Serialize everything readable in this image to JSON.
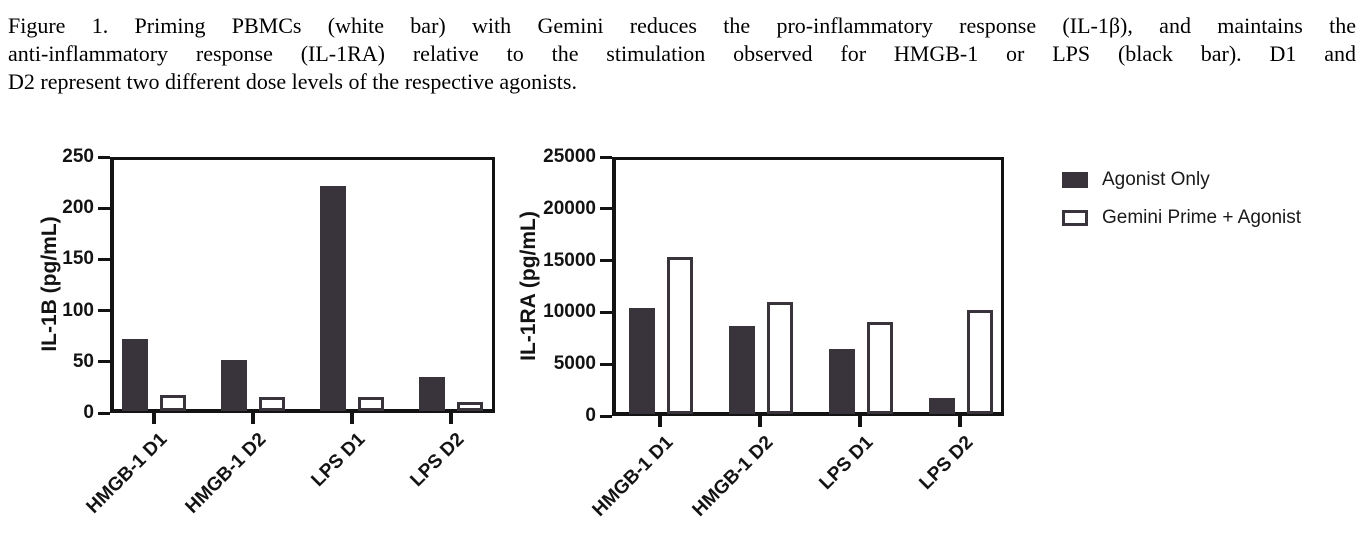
{
  "caption": {
    "lines": [
      "Figure 1. Priming PBMCs (white bar) with Gemini reduces the pro-inflammatory response (IL-1β), and maintains the",
      "anti-inflammatory response (IL-1RA) relative to the stimulation observed for HMGB-1 or LPS (black bar).  D1 and",
      "D2 represent two different dose levels of the respective agonists."
    ]
  },
  "legend": {
    "items": [
      {
        "label": "Agonist Only",
        "swatch": "filled-dark-rect"
      },
      {
        "label": "Gemini Prime + Agonist",
        "swatch": "outlined-white-rect"
      }
    ],
    "position": "right"
  },
  "colors": {
    "bar_dark": "#39343c",
    "bar_white": "#ffffff",
    "axis": "#131313",
    "background": "#ffffff"
  },
  "chart_data": [
    {
      "type": "bar",
      "title": "",
      "xlabel": "",
      "ylabel": "IL-1B (pg/mL)",
      "categories": [
        "HMGB-1 D1",
        "HMGB-1 D2",
        "LPS D1",
        "LPS D2"
      ],
      "series": [
        {
          "name": "Agonist Only",
          "values": [
            70,
            50,
            220,
            33
          ]
        },
        {
          "name": "Gemini Prime + Agonist",
          "values": [
            16,
            14,
            14,
            9
          ]
        }
      ],
      "ylim": [
        0,
        250
      ],
      "yticks": [
        0,
        50,
        100,
        150,
        200,
        250
      ],
      "grid": false,
      "x_tick_label_rotation_deg": 45
    },
    {
      "type": "bar",
      "title": "",
      "xlabel": "",
      "ylabel": "IL-1RA (pg/mL)",
      "categories": [
        "HMGB-1 D1",
        "HMGB-1 D2",
        "LPS D1",
        "LPS D2"
      ],
      "series": [
        {
          "name": "Agonist Only",
          "values": [
            10200,
            8500,
            6300,
            1500
          ]
        },
        {
          "name": "Gemini Prime + Agonist",
          "values": [
            15200,
            10800,
            8900,
            10000
          ]
        }
      ],
      "ylim": [
        0,
        25000
      ],
      "yticks": [
        0,
        5000,
        10000,
        15000,
        20000,
        25000
      ],
      "grid": false,
      "x_tick_label_rotation_deg": 45
    }
  ]
}
